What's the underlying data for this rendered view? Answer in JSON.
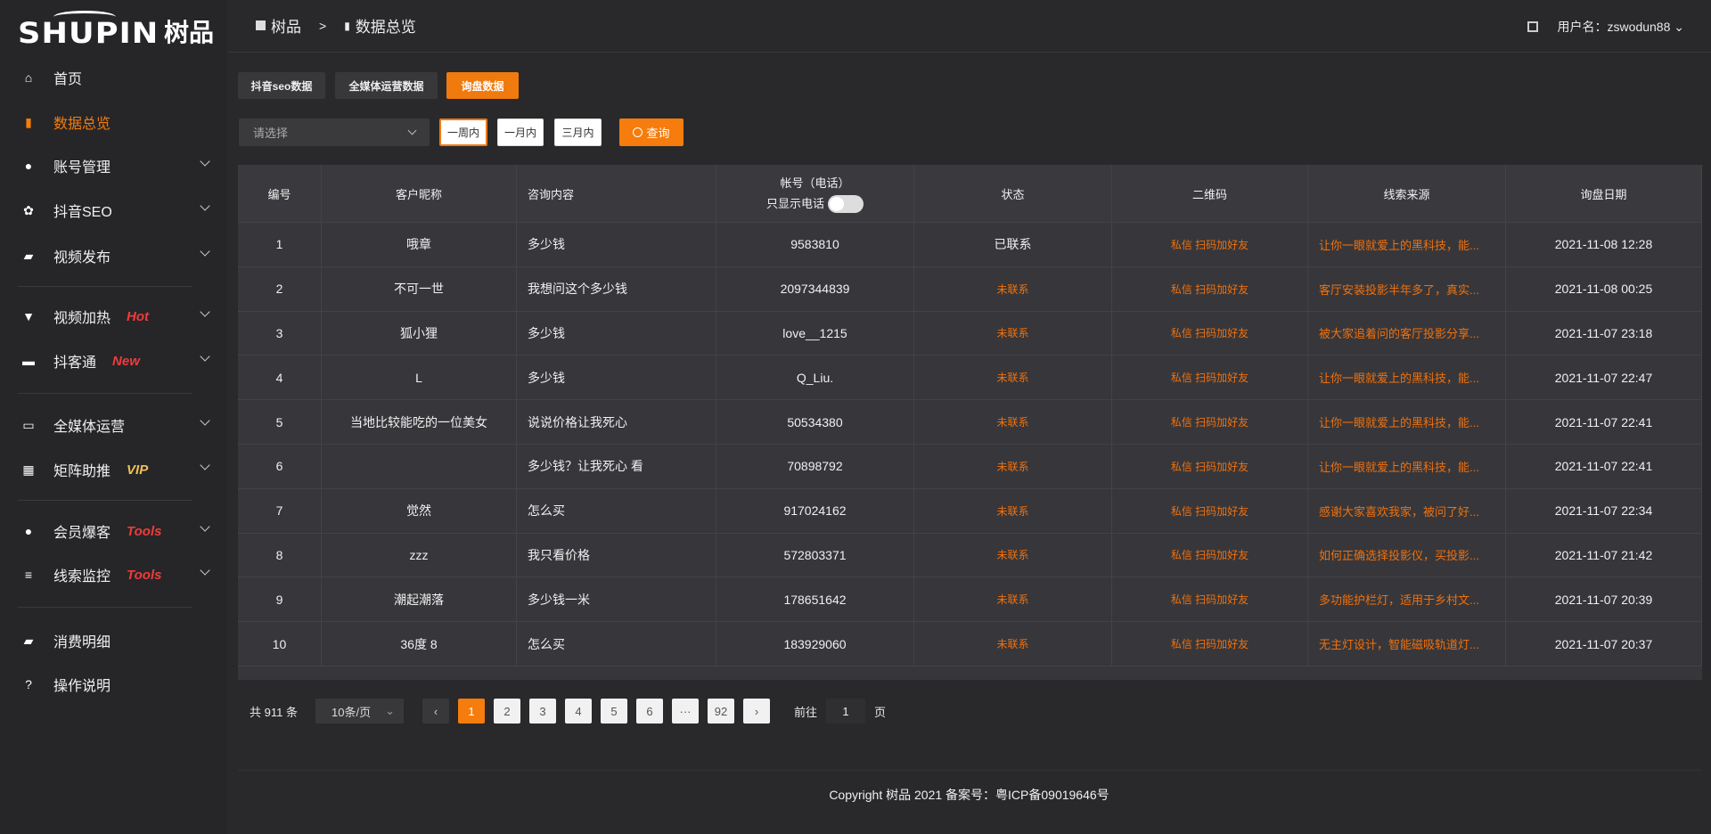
{
  "logo": {
    "text_en": "SHUPIN",
    "text_cn": "树品"
  },
  "sidebar": {
    "items": [
      {
        "label": "首页",
        "icon": "home-icon"
      },
      {
        "label": "数据总览",
        "icon": "bar-chart-icon",
        "active": true
      },
      {
        "label": "账号管理",
        "icon": "user-icon",
        "expandable": true
      },
      {
        "label": "抖音SEO",
        "icon": "gear-icon",
        "expandable": true
      },
      {
        "label": "视频发布",
        "icon": "camera-icon",
        "expandable": true
      },
      {
        "label": "视频加热",
        "icon": "flag-icon",
        "badge": "Hot",
        "badge_color": "#ef3b3b",
        "expandable": true
      },
      {
        "label": "抖客通",
        "icon": "chat-icon",
        "badge": "New",
        "badge_color": "#ef3b3b",
        "expandable": true
      },
      {
        "label": "全媒体运营",
        "icon": "monitor-icon",
        "expandable": true
      },
      {
        "label": "矩阵助推",
        "icon": "grid-icon",
        "badge": "VIP",
        "badge_color": "#f2c14e",
        "expandable": true
      },
      {
        "label": "会员爆客",
        "icon": "member-icon",
        "badge": "Tools",
        "badge_color": "#ef3b3b",
        "expandable": true
      },
      {
        "label": "线索监控",
        "icon": "sliders-icon",
        "badge": "Tools",
        "badge_color": "#ef3b3b",
        "expandable": true
      },
      {
        "label": "消费明细",
        "icon": "wallet-icon"
      },
      {
        "label": "操作说明",
        "icon": "help-icon"
      }
    ]
  },
  "header": {
    "breadcrumb": [
      "树品",
      "数据总览"
    ],
    "separator": ">",
    "username": "用户名：zswodun88"
  },
  "tabs": [
    "抖音seo数据",
    "全媒体运营数据",
    "询盘数据"
  ],
  "active_tab": 2,
  "filter": {
    "select_placeholder": "请选择",
    "ranges": [
      "一周内",
      "一月内",
      "三月内"
    ],
    "selected_range": 0,
    "query": "查询"
  },
  "table": {
    "columns": [
      "编号",
      "客户昵称",
      "咨询内容",
      "帐号（电话）",
      "状态",
      "二维码",
      "线索来源",
      "询盘日期"
    ],
    "phone_toggle_label": "只显示电话",
    "phone_toggle_on": false,
    "rows": [
      [
        "1",
        "哦章",
        "多少钱",
        "9583810",
        "已联系",
        "私信 扫码加好友",
        "让你一眼就爱上的黑科技，能...",
        "2021-11-08 12:28"
      ],
      [
        "2",
        "不可一世",
        "我想问这个多少钱",
        "2097344839",
        "未联系",
        "私信 扫码加好友",
        "客厅安装投影半年多了，真实...",
        "2021-11-08 00:25"
      ],
      [
        "3",
        "狐小狸",
        "多少钱",
        "love__1215",
        "未联系",
        "私信 扫码加好友",
        "被大家追着问的客厅投影分享...",
        "2021-11-07 23:18"
      ],
      [
        "4",
        "L",
        "多少钱",
        "Q_Liu.",
        "未联系",
        "私信 扫码加好友",
        "让你一眼就爱上的黑科技，能...",
        "2021-11-07 22:47"
      ],
      [
        "5",
        "当地比较能吃的一位美女",
        "说说价格让我死心",
        "50534380",
        "未联系",
        "私信 扫码加好友",
        "让你一眼就爱上的黑科技，能...",
        "2021-11-07 22:41"
      ],
      [
        "6",
        "",
        "多少钱？让我死心 看",
        "70898792",
        "未联系",
        "私信 扫码加好友",
        "让你一眼就爱上的黑科技，能...",
        "2021-11-07 22:41"
      ],
      [
        "7",
        "觉然",
        "怎么买",
        "917024162",
        "未联系",
        "私信 扫码加好友",
        "感谢大家喜欢我家，被问了好...",
        "2021-11-07 22:34"
      ],
      [
        "8",
        "zzz",
        "我只看价格",
        "572803371",
        "未联系",
        "私信 扫码加好友",
        "如何正确选择投影仪，买投影...",
        "2021-11-07 21:42"
      ],
      [
        "9",
        "潮起潮落",
        "多少钱一米",
        "178651642",
        "未联系",
        "私信 扫码加好友",
        "多功能护栏灯，适用于乡村文...",
        "2021-11-07 20:39"
      ],
      [
        "10",
        "36度 8",
        "怎么买",
        "183929060",
        "未联系",
        "私信 扫码加好友",
        "无主灯设计，智能磁吸轨道灯...",
        "2021-11-07 20:37"
      ]
    ]
  },
  "pagination": {
    "total": "共 911 条",
    "page_size": "10条/页",
    "pages": [
      "1",
      "2",
      "3",
      "4",
      "5",
      "6",
      "···",
      "92"
    ],
    "current": "1",
    "goto_label": "前往",
    "goto_value": "1",
    "goto_suffix": "页"
  },
  "footer": "Copyright 树品 2021 备案号：粤ICP备09019646号",
  "colors": {
    "accent": "#f57c0d",
    "sidebar_bg": "#262628",
    "main_bg": "#29292b",
    "table_bg": "#37373b"
  }
}
